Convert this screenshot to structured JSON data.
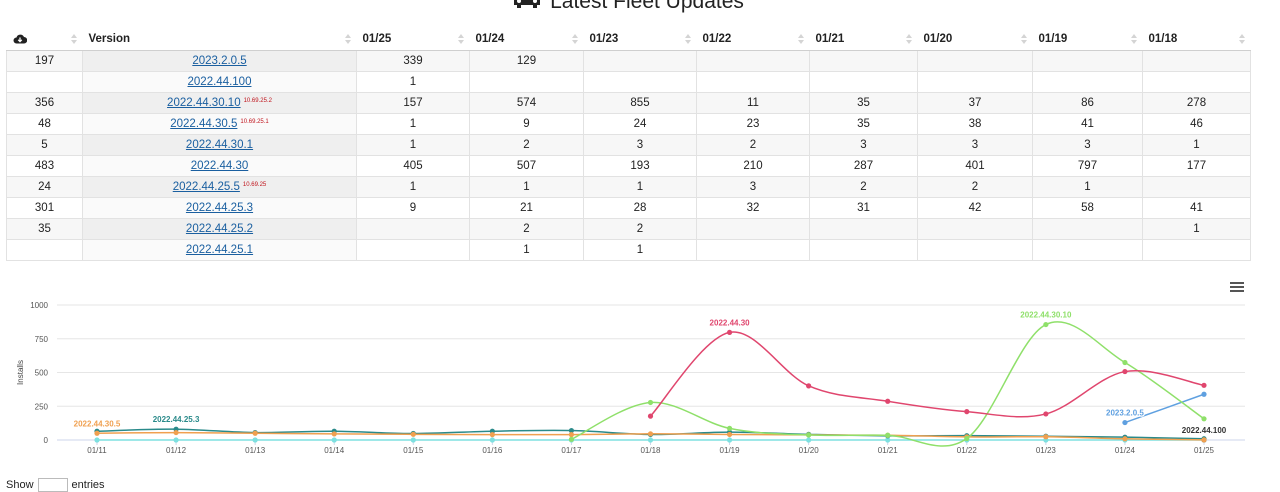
{
  "page_title": "Latest Fleet Updates",
  "table": {
    "columns": [
      "",
      "Version",
      "01/25",
      "01/24",
      "01/23",
      "01/22",
      "01/21",
      "01/20",
      "01/19",
      "01/18"
    ],
    "rows": [
      {
        "total": "197",
        "version": "2023.2.0.5",
        "sup": "",
        "cells": [
          "339",
          "129",
          "",
          "",
          "",
          "",
          "",
          ""
        ]
      },
      {
        "total": "",
        "version": "2022.44.100",
        "sup": "",
        "cells": [
          "1",
          "",
          "",
          "",
          "",
          "",
          "",
          ""
        ]
      },
      {
        "total": "356",
        "version": "2022.44.30.10",
        "sup": "10.69.25.2",
        "cells": [
          "157",
          "574",
          "855",
          "11",
          "35",
          "37",
          "86",
          "278"
        ]
      },
      {
        "total": "48",
        "version": "2022.44.30.5",
        "sup": "10.69.25.1",
        "cells": [
          "1",
          "9",
          "24",
          "23",
          "35",
          "38",
          "41",
          "46"
        ]
      },
      {
        "total": "5",
        "version": "2022.44.30.1",
        "sup": "",
        "cells": [
          "1",
          "2",
          "3",
          "2",
          "3",
          "3",
          "3",
          "1"
        ]
      },
      {
        "total": "483",
        "version": "2022.44.30",
        "sup": "",
        "cells": [
          "405",
          "507",
          "193",
          "210",
          "287",
          "401",
          "797",
          "177"
        ]
      },
      {
        "total": "24",
        "version": "2022.44.25.5",
        "sup": "10.69.25",
        "cells": [
          "1",
          "1",
          "1",
          "3",
          "2",
          "2",
          "1",
          ""
        ]
      },
      {
        "total": "301",
        "version": "2022.44.25.3",
        "sup": "",
        "cells": [
          "9",
          "21",
          "28",
          "32",
          "31",
          "42",
          "58",
          "41"
        ]
      },
      {
        "total": "35",
        "version": "2022.44.25.2",
        "sup": "",
        "cells": [
          "",
          "2",
          "2",
          "",
          "",
          "",
          "",
          "1"
        ]
      },
      {
        "total": "",
        "version": "2022.44.25.1",
        "sup": "",
        "cells": [
          "",
          "1",
          "1",
          "",
          "",
          "",
          "",
          ""
        ]
      }
    ]
  },
  "show_entries": {
    "prefix": "Show",
    "suffix": "entries"
  },
  "chart_data": {
    "type": "line",
    "ylabel": "Installs",
    "ylim": [
      0,
      1000
    ],
    "y_ticks": [
      0,
      250,
      500,
      750,
      1000
    ],
    "x": [
      "01/11",
      "01/12",
      "01/13",
      "01/14",
      "01/15",
      "01/16",
      "01/17",
      "01/18",
      "01/19",
      "01/20",
      "01/21",
      "01/22",
      "01/23",
      "01/24",
      "01/25"
    ],
    "series": [
      {
        "name": "2022.44.30",
        "color": "#e0466e",
        "label_index": 8,
        "values": [
          null,
          null,
          null,
          null,
          null,
          null,
          null,
          177,
          797,
          401,
          287,
          210,
          193,
          507,
          405
        ]
      },
      {
        "name": "2022.44.30.10",
        "color": "#8fe06a",
        "label_index": 12,
        "values": [
          null,
          null,
          null,
          null,
          null,
          null,
          5,
          278,
          86,
          37,
          35,
          11,
          855,
          574,
          157
        ]
      },
      {
        "name": "2023.2.0.5",
        "color": "#5fa0e0",
        "label_index": 13,
        "values": [
          null,
          null,
          null,
          null,
          null,
          null,
          null,
          null,
          null,
          null,
          null,
          null,
          null,
          129,
          339
        ]
      },
      {
        "name": "2022.44.30.5",
        "color": "#f0a050",
        "label_index": 0,
        "values": [
          50,
          55,
          50,
          45,
          42,
          40,
          40,
          46,
          41,
          38,
          35,
          23,
          24,
          9,
          1
        ]
      },
      {
        "name": "2022.44.25.3",
        "color": "#2a8a8a",
        "label_index": 1,
        "values": [
          65,
          80,
          55,
          65,
          48,
          65,
          70,
          41,
          58,
          42,
          31,
          32,
          28,
          21,
          9
        ]
      },
      {
        "name": "2022.44.100",
        "color": "#333333",
        "label_index": 14,
        "values": [
          null,
          null,
          null,
          null,
          null,
          null,
          null,
          null,
          null,
          null,
          null,
          null,
          null,
          null,
          1
        ]
      },
      {
        "name": "",
        "color": "#7ee0e0",
        "label_index": -1,
        "values": [
          0,
          0,
          0,
          0,
          0,
          0,
          0,
          0,
          0,
          0,
          0,
          0,
          0,
          0,
          0
        ]
      }
    ]
  }
}
